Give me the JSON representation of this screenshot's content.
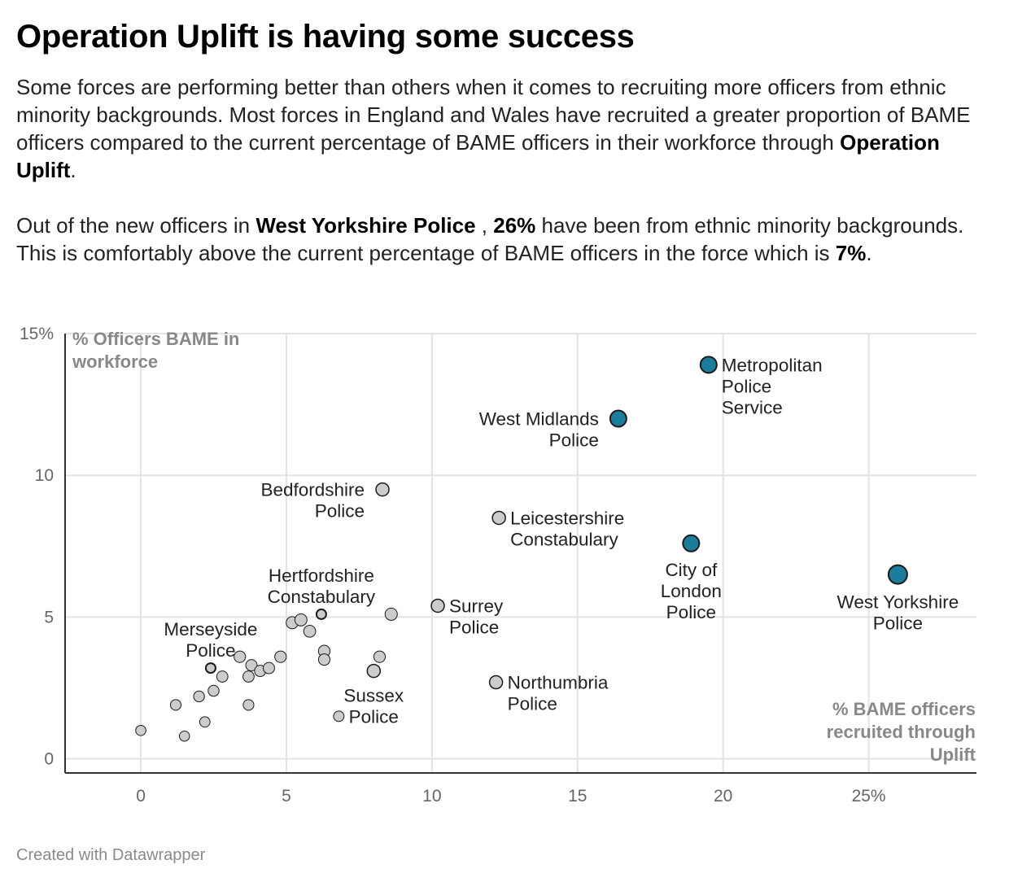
{
  "header": {
    "title": "Operation Uplift is having some success",
    "p1_text_a": "Some forces are performing better than others when it comes to recruiting more officers from ethnic minority backgrounds. Most forces in England and Wales have recruited a greater proportion of BAME officers compared to the current percentage of BAME officers in their workforce through ",
    "p1_bold": "Operation Uplift",
    "p1_text_b": ".",
    "p2_text_a": "Out of the new officers in ",
    "p2_bold_force": "West Yorkshire Police",
    "p2_text_b": " , ",
    "p2_bold_pct": "26%",
    "p2_text_c": " have been from ethnic minority backgrounds. This is comfortably above the current percentage of BAME officers in the force which is ",
    "p2_bold_pct2": "7%",
    "p2_text_d": "."
  },
  "footer": {
    "credit": "Created with Datawrapper"
  },
  "chart_data": {
    "type": "scatter",
    "xlabel": "% BAME officers recruited through Uplift",
    "ylabel": "% Officers BAME in workforce",
    "xlim": [
      -2.6,
      28.7
    ],
    "ylim": [
      -0.5,
      15.0
    ],
    "x_ticks": [
      "0",
      "5",
      "10",
      "15",
      "20",
      "25%"
    ],
    "y_ticks": [
      "0",
      "5",
      "10",
      "15%"
    ],
    "grid": true,
    "colors": {
      "highlight": "#1a7d9c",
      "point": "#cccccc",
      "stroke": "#1a1a1a",
      "label": "#222222"
    },
    "points": [
      {
        "x": 0.0,
        "y": 1.0
      },
      {
        "x": 1.2,
        "y": 1.9
      },
      {
        "x": 1.5,
        "y": 0.8
      },
      {
        "x": 2.0,
        "y": 2.2
      },
      {
        "x": 2.2,
        "y": 1.3
      },
      {
        "x": 2.5,
        "y": 2.4
      },
      {
        "x": 2.8,
        "y": 2.9
      },
      {
        "x": 3.4,
        "y": 3.6
      },
      {
        "x": 3.7,
        "y": 2.9
      },
      {
        "x": 3.7,
        "y": 1.9
      },
      {
        "x": 3.8,
        "y": 3.3
      },
      {
        "x": 4.1,
        "y": 3.1
      },
      {
        "x": 4.4,
        "y": 3.2
      },
      {
        "x": 4.8,
        "y": 3.6
      },
      {
        "x": 5.2,
        "y": 4.8
      },
      {
        "x": 5.5,
        "y": 4.9
      },
      {
        "x": 5.8,
        "y": 4.5
      },
      {
        "x": 6.3,
        "y": 3.8
      },
      {
        "x": 6.3,
        "y": 3.5
      },
      {
        "x": 6.8,
        "y": 1.5
      },
      {
        "x": 8.2,
        "y": 3.6
      },
      {
        "x": 8.6,
        "y": 5.1
      },
      {
        "x": 2.4,
        "y": 3.2,
        "label": [
          "Merseyside",
          "Police"
        ],
        "label_side": "above"
      },
      {
        "x": 6.2,
        "y": 5.1,
        "label": [
          "Hertfordshire",
          "Constabulary"
        ],
        "label_side": "above"
      },
      {
        "x": 8.0,
        "y": 3.1,
        "label": [
          "Sussex",
          "Police"
        ],
        "label_side": "below"
      },
      {
        "x": 8.3,
        "y": 9.5,
        "label": [
          "Bedfordshire",
          "Police"
        ],
        "label_side": "left"
      },
      {
        "x": 10.2,
        "y": 5.4,
        "label": [
          "Surrey",
          "Police"
        ],
        "label_side": "right"
      },
      {
        "x": 12.2,
        "y": 2.7,
        "label": [
          "Northumbria",
          "Police"
        ],
        "label_side": "right"
      },
      {
        "x": 12.3,
        "y": 8.5,
        "label": [
          "Leicestershire",
          "Constabulary"
        ],
        "label_side": "right"
      },
      {
        "x": 16.4,
        "y": 12.0,
        "highlight": true,
        "label": [
          "West Midlands",
          "Police"
        ],
        "label_side": "left"
      },
      {
        "x": 18.9,
        "y": 7.6,
        "highlight": true,
        "label": [
          "City of",
          "London",
          "Police"
        ],
        "label_side": "below"
      },
      {
        "x": 19.5,
        "y": 13.9,
        "highlight": true,
        "label": [
          "Metropolitan",
          "Police",
          "Service"
        ],
        "label_side": "right"
      },
      {
        "x": 26.0,
        "y": 6.5,
        "highlight": true,
        "label": [
          "West Yorkshire",
          "Police"
        ],
        "label_side": "below"
      }
    ]
  }
}
